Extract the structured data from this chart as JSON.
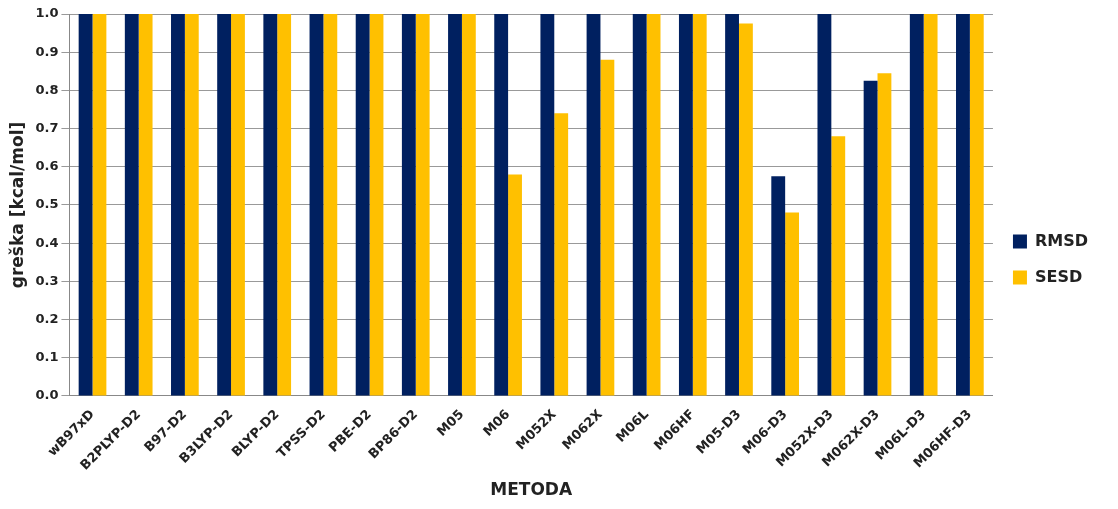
{
  "chart_data": {
    "type": "bar",
    "xlabel": "METODA",
    "ylabel": "greška [kcal/mol]",
    "categories": [
      "wB97xD",
      "B2PLYP-D2",
      "B97-D2",
      "B3LYP-D2",
      "BLYP-D2",
      "TPSS-D2",
      "PBE-D2",
      "BP86-D2",
      "M05",
      "M06",
      "M052X",
      "M062X",
      "M06L",
      "M06HF",
      "M05-D3",
      "M06-D3",
      "M052X-D3",
      "M062X-D3",
      "M06L-D3",
      "M06HF-D3"
    ],
    "series": [
      {
        "name": "RMSD",
        "color": "#002060",
        "values": [
          1,
          1,
          1,
          1,
          1,
          1,
          1,
          1,
          1,
          1,
          1,
          1,
          1,
          1,
          1,
          0.575,
          1,
          0.825,
          1,
          1
        ]
      },
      {
        "name": "SESD",
        "color": "#ffc000",
        "values": [
          1,
          1,
          1,
          1,
          1,
          1,
          1,
          1,
          1,
          0.58,
          0.74,
          0.88,
          1,
          1,
          0.975,
          0.48,
          0.68,
          0.845,
          1,
          1
        ]
      }
    ],
    "ylim": [
      0,
      1
    ],
    "yticks": [
      {
        "value": 0,
        "label": "0.0"
      },
      {
        "value": 0.1,
        "label": "0.1"
      },
      {
        "value": 0.2,
        "label": "0.2"
      },
      {
        "value": 0.3,
        "label": "0.3"
      },
      {
        "value": 0.4,
        "label": "0.4"
      },
      {
        "value": 0.5,
        "label": "0.5"
      },
      {
        "value": 0.6,
        "label": "0.6"
      },
      {
        "value": 0.7,
        "label": "0.7"
      },
      {
        "value": 0.8,
        "label": "0.8"
      },
      {
        "value": 0.9,
        "label": "0.9"
      },
      {
        "value": 1,
        "label": "1.0"
      }
    ],
    "grid": "y",
    "legend": "right"
  }
}
